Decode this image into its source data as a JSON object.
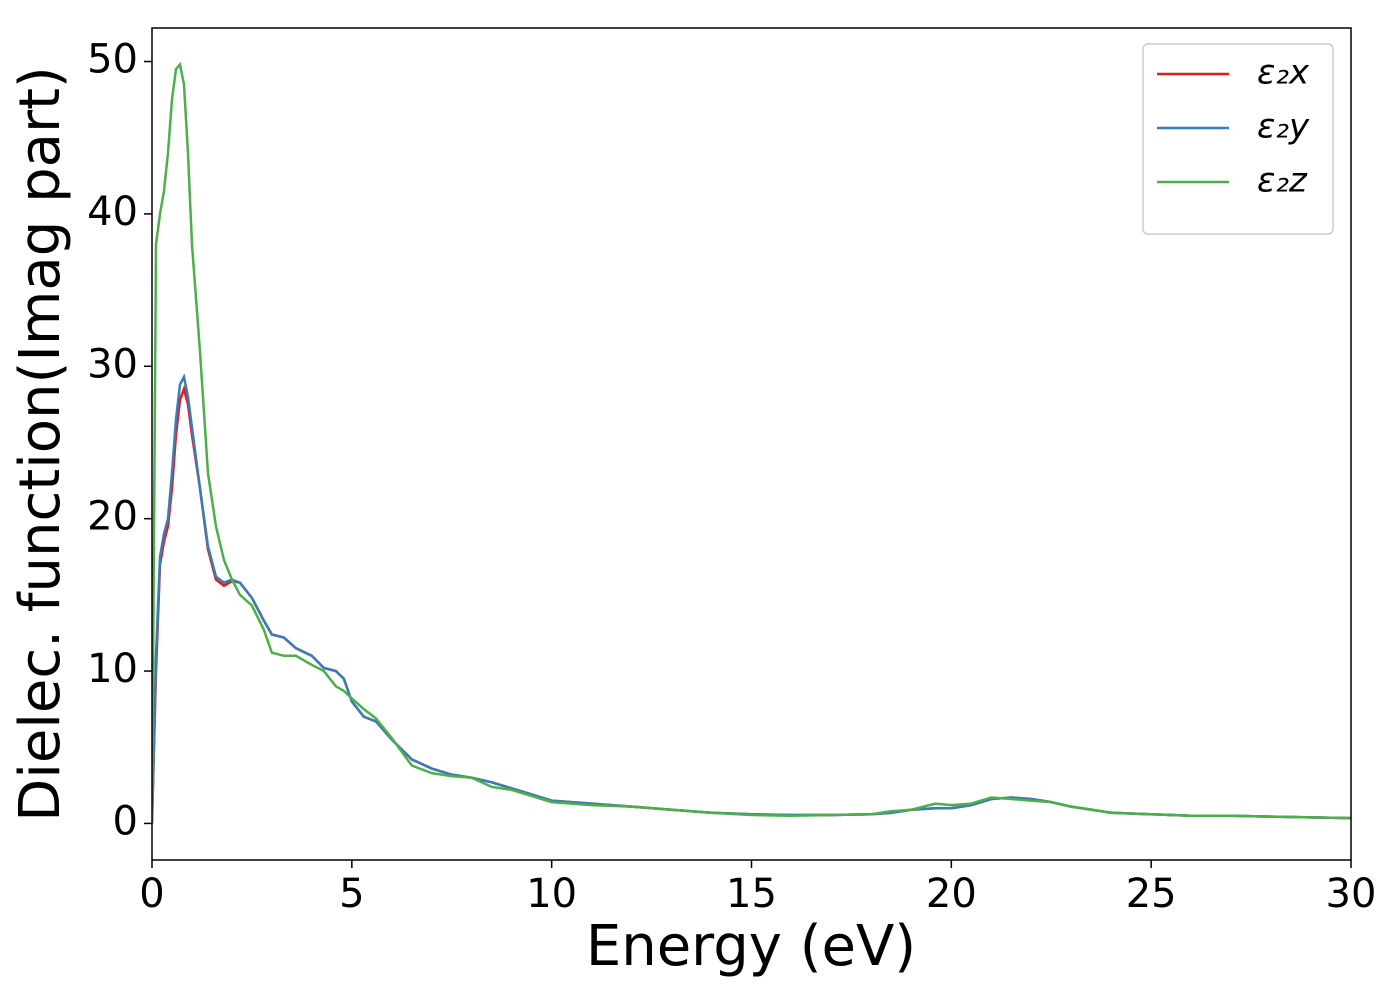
{
  "chart_data": {
    "type": "line",
    "xlabel": "Energy (eV)",
    "ylabel": "Dielec. function(Imag part)",
    "x": [
      0,
      0.1,
      0.2,
      0.3,
      0.4,
      0.5,
      0.6,
      0.7,
      0.8,
      0.9,
      1.0,
      1.2,
      1.4,
      1.6,
      1.8,
      2.0,
      2.2,
      2.5,
      2.8,
      3.0,
      3.3,
      3.6,
      4.0,
      4.3,
      4.6,
      4.8,
      5.0,
      5.3,
      5.6,
      6.0,
      6.5,
      7.0,
      7.5,
      8.0,
      8.5,
      9.0,
      10,
      11,
      12,
      13,
      14,
      15,
      16,
      17,
      18,
      18.5,
      19,
      19.6,
      20,
      20.5,
      21,
      21.5,
      22,
      22.5,
      23,
      24,
      25,
      26,
      27,
      28,
      29,
      30
    ],
    "series": [
      {
        "name": "ε₂x",
        "color": "#e41a1c",
        "values": [
          0,
          10,
          17,
          18.5,
          19.5,
          22,
          25.5,
          27.8,
          28.5,
          27.5,
          25.5,
          22,
          18,
          16,
          15.6,
          15.9,
          15.8,
          14.8,
          13.3,
          12.4,
          12.2,
          11.5,
          11,
          10.2,
          10,
          9.5,
          8,
          7,
          6.7,
          5.5,
          4.2,
          3.6,
          3.2,
          3.0,
          2.7,
          2.3,
          1.5,
          1.3,
          1.1,
          0.9,
          0.7,
          0.6,
          0.55,
          0.55,
          0.6,
          0.7,
          0.9,
          1.0,
          1.0,
          1.2,
          1.6,
          1.7,
          1.6,
          1.4,
          1.1,
          0.7,
          0.6,
          0.5,
          0.5,
          0.45,
          0.4,
          0.35
        ]
      },
      {
        "name": "ε₂y",
        "color": "#377eb8",
        "values": [
          0,
          11,
          17.5,
          19,
          20,
          23,
          26.5,
          28.8,
          29.3,
          28,
          26,
          22,
          18.2,
          16.2,
          15.8,
          16,
          15.8,
          14.8,
          13.3,
          12.4,
          12.2,
          11.5,
          11,
          10.2,
          10,
          9.5,
          8,
          7,
          6.7,
          5.5,
          4.2,
          3.6,
          3.2,
          3.0,
          2.7,
          2.3,
          1.5,
          1.3,
          1.1,
          0.9,
          0.7,
          0.6,
          0.55,
          0.55,
          0.6,
          0.7,
          0.9,
          1.0,
          1.0,
          1.2,
          1.6,
          1.7,
          1.6,
          1.4,
          1.1,
          0.7,
          0.6,
          0.5,
          0.5,
          0.45,
          0.4,
          0.35
        ]
      },
      {
        "name": "ε₂z",
        "color": "#4daf4a",
        "values": [
          0,
          38,
          40,
          41.5,
          44,
          47.5,
          49.5,
          49.8,
          48.5,
          44,
          38,
          31,
          23,
          19.5,
          17.3,
          16,
          15,
          14.3,
          12.7,
          11.2,
          11,
          11,
          10.4,
          10,
          9,
          8.7,
          8.2,
          7.5,
          6.9,
          5.6,
          3.8,
          3.3,
          3.1,
          3.0,
          2.4,
          2.2,
          1.4,
          1.2,
          1.1,
          0.9,
          0.7,
          0.55,
          0.5,
          0.55,
          0.6,
          0.8,
          0.9,
          1.3,
          1.2,
          1.3,
          1.7,
          1.6,
          1.5,
          1.4,
          1.1,
          0.7,
          0.6,
          0.5,
          0.5,
          0.45,
          0.4,
          0.35
        ]
      }
    ],
    "xlim": [
      0,
      30
    ],
    "ylim": [
      -2.4,
      52.2
    ],
    "xticks": [
      0,
      5,
      10,
      15,
      20,
      25,
      30
    ],
    "yticks": [
      0,
      10,
      20,
      30,
      40,
      50
    ],
    "legend": "upper right"
  }
}
